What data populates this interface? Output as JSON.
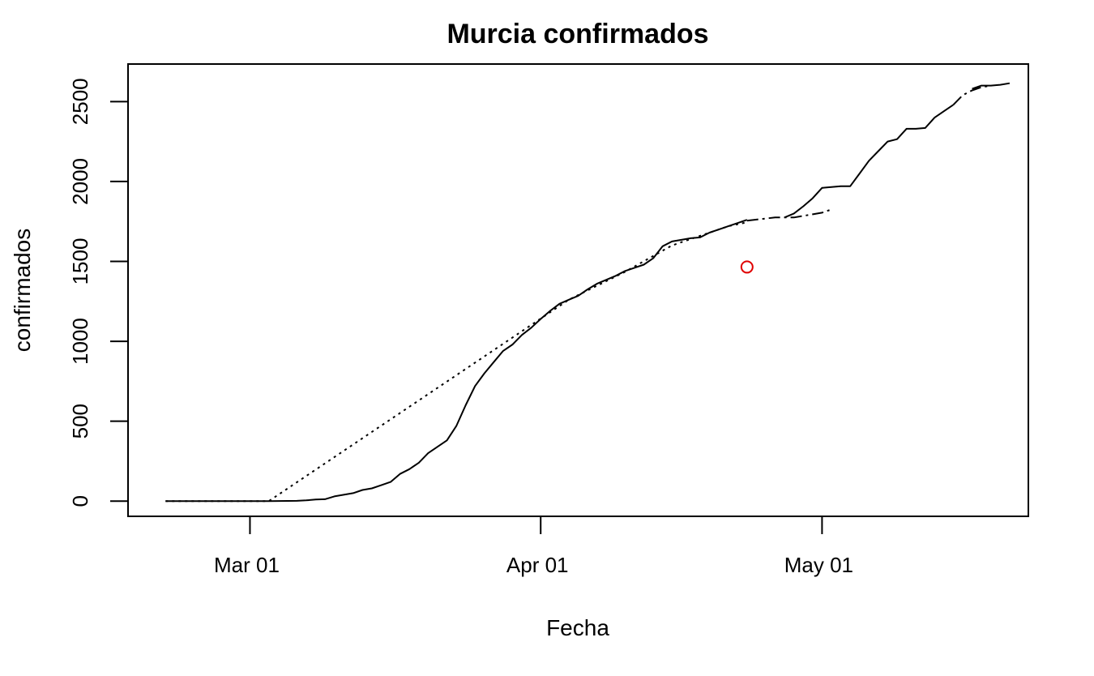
{
  "chart_data": {
    "type": "line",
    "title": "Murcia confirmados",
    "xlabel": "Fecha",
    "ylabel": "confirmados",
    "xlim": [
      "2020-02-17",
      "2020-05-23"
    ],
    "ylim": [
      -95,
      2735
    ],
    "x_ticks": [
      {
        "date": "2020-03-01",
        "label": "Mar 01"
      },
      {
        "date": "2020-04-01",
        "label": "Apr 01"
      },
      {
        "date": "2020-05-01",
        "label": "May 01"
      }
    ],
    "y_ticks": [
      {
        "value": 0,
        "label": "0"
      },
      {
        "value": 500,
        "label": "500"
      },
      {
        "value": 1000,
        "label": "1000"
      },
      {
        "value": 1500,
        "label": "1500"
      },
      {
        "value": 2000,
        "label": "2000"
      },
      {
        "value": 2500,
        "label": "2500"
      }
    ],
    "grid": false,
    "series": [
      {
        "style": "solid",
        "color": "#000000",
        "x": [
          "2020-02-21",
          "2020-02-28",
          "2020-03-03",
          "2020-03-06",
          "2020-03-07",
          "2020-03-08",
          "2020-03-09",
          "2020-03-10",
          "2020-03-11",
          "2020-03-12",
          "2020-03-13",
          "2020-03-14",
          "2020-03-15",
          "2020-03-16",
          "2020-03-17",
          "2020-03-18",
          "2020-03-19",
          "2020-03-20",
          "2020-03-21",
          "2020-03-22",
          "2020-03-23",
          "2020-03-24",
          "2020-03-25",
          "2020-03-26",
          "2020-03-27",
          "2020-03-28",
          "2020-03-29",
          "2020-03-30",
          "2020-03-31",
          "2020-04-01",
          "2020-04-02",
          "2020-04-03",
          "2020-04-04",
          "2020-04-05",
          "2020-04-06",
          "2020-04-07",
          "2020-04-08",
          "2020-04-09",
          "2020-04-10",
          "2020-04-11",
          "2020-04-12",
          "2020-04-13",
          "2020-04-14",
          "2020-04-15",
          "2020-04-16",
          "2020-04-17",
          "2020-04-18",
          "2020-04-19",
          "2020-04-20",
          "2020-04-21",
          "2020-04-22",
          "2020-04-23"
        ],
        "y": [
          0,
          0,
          0,
          2,
          5,
          10,
          12,
          30,
          40,
          50,
          70,
          80,
          100,
          120,
          170,
          200,
          240,
          300,
          340,
          380,
          470,
          600,
          720,
          800,
          870,
          940,
          980,
          1040,
          1085,
          1140,
          1190,
          1235,
          1260,
          1285,
          1325,
          1360,
          1385,
          1410,
          1440,
          1460,
          1480,
          1520,
          1595,
          1625,
          1635,
          1645,
          1650,
          1680,
          1700,
          1720,
          1740,
          1760
        ]
      },
      {
        "style": "dotted",
        "color": "#000000",
        "x": [
          "2020-02-21",
          "2020-03-03",
          "2020-04-04",
          "2020-04-10",
          "2020-04-15",
          "2020-04-18",
          "2020-04-21",
          "2020-04-23"
        ],
        "y": [
          0,
          0,
          1260,
          1435,
          1600,
          1660,
          1720,
          1745
        ]
      },
      {
        "style": "dash-dot",
        "color": "#000000",
        "x": [
          "2020-04-23",
          "2020-04-26",
          "2020-04-28",
          "2020-05-01",
          "2020-05-02"
        ],
        "y": [
          1755,
          1775,
          1775,
          1805,
          1825
        ]
      },
      {
        "style": "solid",
        "color": "#000000",
        "x": [
          "2020-04-27",
          "2020-04-28",
          "2020-04-29",
          "2020-04-30",
          "2020-05-01",
          "2020-05-02",
          "2020-05-03",
          "2020-05-04",
          "2020-05-05",
          "2020-05-06",
          "2020-05-07",
          "2020-05-08",
          "2020-05-09",
          "2020-05-10",
          "2020-05-11",
          "2020-05-12",
          "2020-05-13",
          "2020-05-14",
          "2020-05-15"
        ],
        "y": [
          1775,
          1800,
          1845,
          1895,
          1960,
          1965,
          1970,
          1970,
          2050,
          2130,
          2190,
          2250,
          2265,
          2330,
          2330,
          2335,
          2400,
          2440,
          2480
        ]
      },
      {
        "style": "dash-dot",
        "color": "#000000",
        "x": [
          "2020-05-15",
          "2020-05-16",
          "2020-05-17",
          "2020-05-18",
          "2020-05-19"
        ],
        "y": [
          2480,
          2540,
          2570,
          2590,
          2600
        ]
      },
      {
        "style": "solid",
        "color": "#000000",
        "x": [
          "2020-05-17",
          "2020-05-18",
          "2020-05-19",
          "2020-05-20",
          "2020-05-21"
        ],
        "y": [
          2580,
          2600,
          2600,
          2605,
          2615
        ]
      }
    ],
    "points": [
      {
        "x": "2020-04-23",
        "y": 1465,
        "marker": "open-circle",
        "color": "#e00000"
      }
    ]
  }
}
